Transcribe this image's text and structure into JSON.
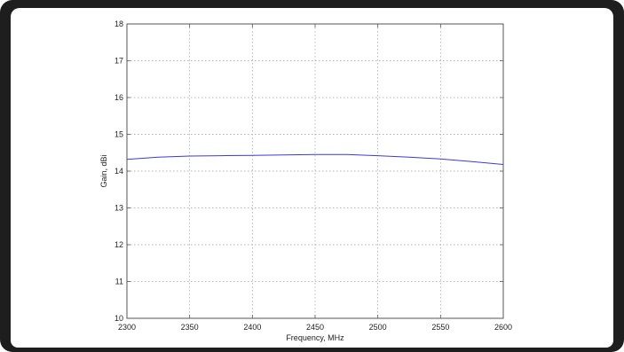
{
  "chart_data": {
    "type": "line",
    "title": "",
    "xlabel": "Frequency, MHz",
    "ylabel": "Gain, dBi",
    "xlim": [
      2300,
      2600
    ],
    "ylim": [
      10,
      18
    ],
    "x_ticks": [
      "2300",
      "2350",
      "2400",
      "2450",
      "2500",
      "2550",
      "2600"
    ],
    "y_ticks": [
      "10",
      "11",
      "12",
      "13",
      "14",
      "15",
      "16",
      "17",
      "18"
    ],
    "grid": true,
    "grid_style": "dotted",
    "series": [
      {
        "name": "",
        "color": "#3a3ad8",
        "x": [
          2300,
          2325,
          2350,
          2375,
          2400,
          2425,
          2450,
          2475,
          2500,
          2525,
          2550,
          2575,
          2600
        ],
        "y": [
          14.32,
          14.38,
          14.41,
          14.42,
          14.43,
          14.44,
          14.45,
          14.45,
          14.42,
          14.38,
          14.33,
          14.26,
          14.18
        ]
      }
    ]
  },
  "colors": {
    "frame": "#1e1e1e",
    "panel": "#ffffff",
    "axes": "#555555",
    "grid": "#9a9a9a"
  }
}
